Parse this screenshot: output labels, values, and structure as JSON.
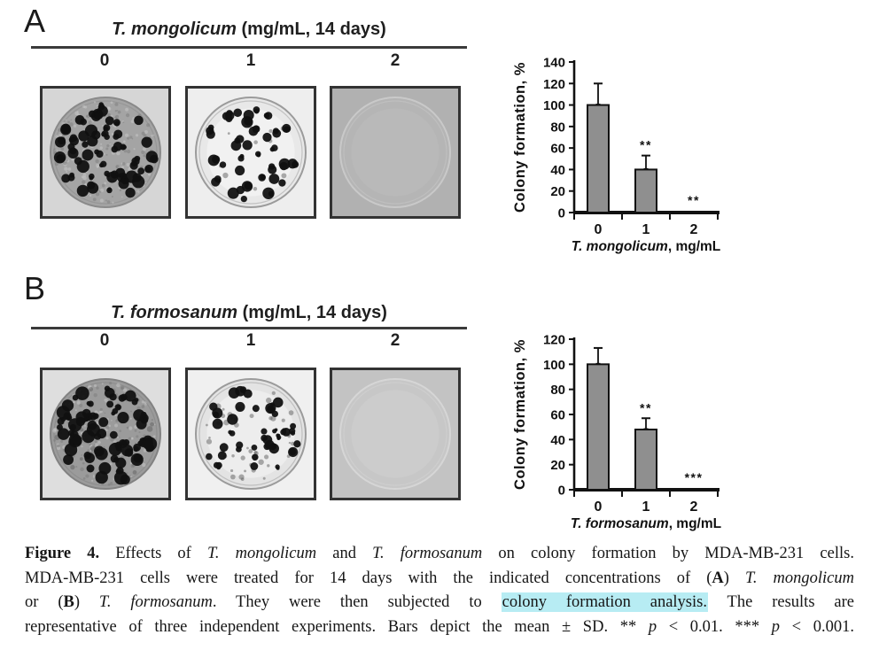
{
  "colors": {
    "highlight": "#b7ecf3",
    "bar": "#8f8f8f",
    "axis": "#111111",
    "frame": "#333333",
    "underline": "#3b3b3b"
  },
  "figure": {
    "panels": [
      {
        "letter": "A",
        "header": {
          "species": "T. mongolicum",
          "suffix": " (mg/mL, 14 days)"
        },
        "concentrations": [
          "0",
          "1",
          "2"
        ],
        "dishes": [
          {
            "label": "0",
            "bg": "#d6d6d6",
            "dish": "#a4a4a4",
            "rim": "#8a8a8a",
            "glow": "",
            "speckles": 240,
            "faint": 0,
            "colonies": 55,
            "rmin": 3.2,
            "rmax": 7.2,
            "seed": 7
          },
          {
            "label": "1",
            "bg": "#eeeeee",
            "dish": "#e8e8e8",
            "rim": "#9b9b9b",
            "glow": "#f6f6f6",
            "speckles": 0,
            "faint": 10,
            "colonies": 38,
            "rmin": 2.8,
            "rmax": 6.8,
            "seed": 21
          },
          {
            "label": "2",
            "bg": "#b1b1b1",
            "dish": "#b5b5b5",
            "rim": "#c9c9c9",
            "glow": "#bcbcbc",
            "speckles": 0,
            "faint": 0,
            "colonies": 0,
            "rmin": 0,
            "rmax": 0,
            "seed": 3
          }
        ]
      },
      {
        "letter": "B",
        "header": {
          "species": "T. formosanum",
          "suffix": " (mg/mL, 14 days)"
        },
        "concentrations": [
          "0",
          "1",
          "2"
        ],
        "dishes": [
          {
            "label": "0",
            "bg": "#dedede",
            "dish": "#9b9b9b",
            "rim": "#828282",
            "glow": "",
            "speckles": 260,
            "faint": 14,
            "colonies": 62,
            "rmin": 3.2,
            "rmax": 7.8,
            "seed": 13
          },
          {
            "label": "1",
            "bg": "#f0f0f0",
            "dish": "#e3e3e3",
            "rim": "#9b9b9b",
            "glow": "#f2f2f2",
            "speckles": 0,
            "faint": 48,
            "colonies": 40,
            "rmin": 2.2,
            "rmax": 6.4,
            "seed": 29
          },
          {
            "label": "2",
            "bg": "#c3c3c3",
            "dish": "#c7c7c7",
            "rim": "#d6d6d6",
            "glow": "#cfcfcf",
            "speckles": 0,
            "faint": 0,
            "colonies": 0,
            "rmin": 0,
            "rmax": 0,
            "seed": 5
          }
        ]
      }
    ],
    "caption": {
      "lines": [
        [
          {
            "t": "Figure 4.",
            "b": 1
          },
          {
            "t": " Effects of "
          },
          {
            "t": "T. mongolicum",
            "i": 1
          },
          {
            "t": " and "
          },
          {
            "t": "T. formosanum",
            "i": 1
          },
          {
            "t": " on colony formation by MDA-MB-231 cells."
          }
        ],
        [
          {
            "t": "MDA-MB-231 cells were treated for 14 days with the indicated concentrations of ("
          },
          {
            "t": "A",
            "b": 1
          },
          {
            "t": ") "
          },
          {
            "t": "T. mongolicum",
            "i": 1
          }
        ],
        [
          {
            "t": "or ("
          },
          {
            "t": "B",
            "b": 1
          },
          {
            "t": ") "
          },
          {
            "t": "T. formosanum",
            "i": 1
          },
          {
            "t": ". They were then subjected to "
          },
          {
            "t": "colony formation analysis.",
            "hl": 1
          },
          {
            "t": " The results are"
          }
        ],
        [
          {
            "t": "representative of three independent experiments. Bars depict the mean ± SD. ** "
          },
          {
            "t": "p",
            "i": 1
          },
          {
            "t": " < 0.01. *** "
          },
          {
            "t": "p",
            "i": 1
          },
          {
            "t": " < 0.001."
          }
        ]
      ]
    }
  },
  "chart_data": [
    {
      "type": "bar",
      "categories": [
        "0",
        "1",
        "2"
      ],
      "values": [
        100,
        40,
        0
      ],
      "errors": [
        20,
        13,
        0
      ],
      "significance": [
        "",
        "**",
        "**"
      ],
      "title": "",
      "xlabel": "T. mongolicum, mg/mL",
      "xlabel_italic": "T. mongolicum",
      "xlabel_regular": ", mg/mL",
      "ylabel": "Colony formation, %",
      "ylim": [
        0,
        140
      ],
      "ytick_step": 20,
      "grid": false,
      "legend": null,
      "bar_color": "#8f8f8f"
    },
    {
      "type": "bar",
      "categories": [
        "0",
        "1",
        "2"
      ],
      "values": [
        100,
        48,
        0
      ],
      "errors": [
        13,
        9,
        0
      ],
      "significance": [
        "",
        "**",
        "***"
      ],
      "title": "",
      "xlabel": "T. formosanum, mg/mL",
      "xlabel_italic": "T. formosanum",
      "xlabel_regular": ", mg/mL",
      "ylabel": "Colony formation, %",
      "ylim": [
        0,
        120
      ],
      "ytick_step": 20,
      "grid": false,
      "legend": null,
      "bar_color": "#8f8f8f"
    }
  ]
}
